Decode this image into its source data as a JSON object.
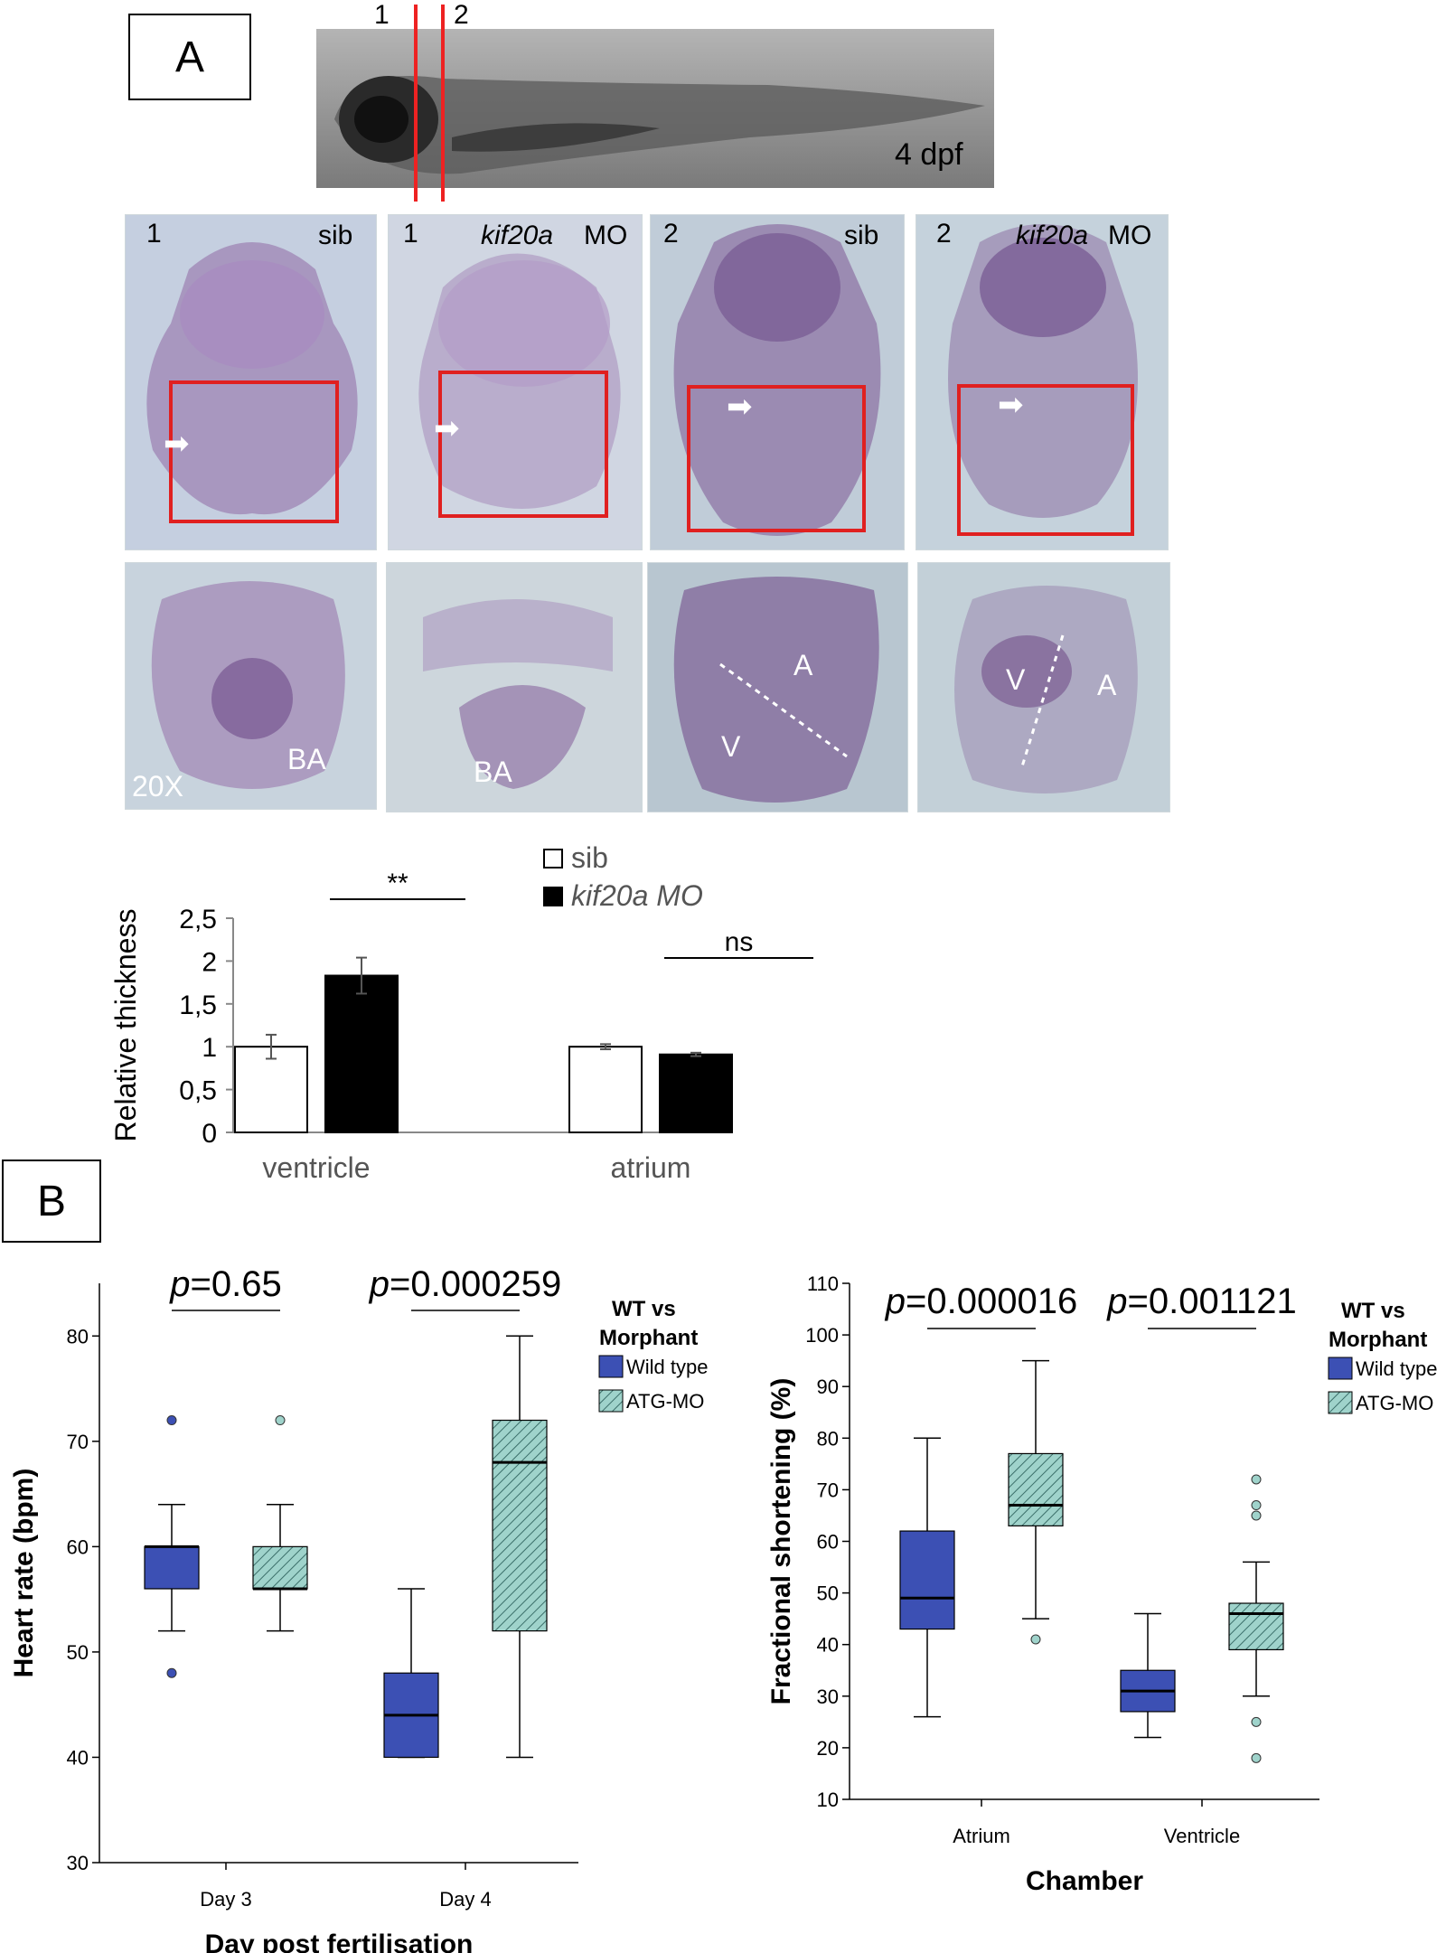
{
  "panel_a": {
    "label": "A",
    "larva": {
      "stage": "4 dpf",
      "section_marks": [
        "1",
        "2"
      ]
    },
    "sections": [
      {
        "num": "1",
        "condition": "sib"
      },
      {
        "num": "1",
        "gene": "kif20a",
        "suffix": "MO"
      },
      {
        "num": "2",
        "condition": "sib"
      },
      {
        "num": "2",
        "gene": "kif20a",
        "suffix": "MO"
      }
    ],
    "zoom": {
      "magnification": "20X",
      "labels": [
        "BA",
        "BA",
        "A",
        "V",
        "V",
        "A"
      ]
    }
  },
  "panel_b": {
    "label": "B"
  },
  "chart_data": [
    {
      "type": "bar",
      "categories": [
        "ventricle",
        "atrium"
      ],
      "series": [
        {
          "name": "sib",
          "color": "#ffffff",
          "values": [
            1.0,
            1.0
          ],
          "errors": [
            0.14,
            0.03
          ]
        },
        {
          "name": "kif20a MO",
          "color": "#000000",
          "values": [
            1.83,
            0.91
          ],
          "errors": [
            0.21,
            0.02
          ]
        }
      ],
      "xlabel": "",
      "ylabel": "Relative thickness",
      "ylim": [
        0,
        2.5
      ],
      "yticks": [
        "0",
        "0,5",
        "1",
        "1,5",
        "2",
        "2,5"
      ],
      "significance": [
        "**",
        "ns"
      ],
      "legend": "top-right"
    },
    {
      "type": "box",
      "categories": [
        "Day 3",
        "Day 4"
      ],
      "xlabel": "Day post fertilisation",
      "ylabel": "Heart rate (bpm)",
      "ylim": [
        30,
        85
      ],
      "yticks": [
        30,
        40,
        50,
        60,
        70,
        80
      ],
      "pvalues": [
        "0.65",
        "0.000259"
      ],
      "legend_title": "WT vs Morphant",
      "series": [
        {
          "name": "Wild type",
          "color": "#3c50b4",
          "boxes": [
            {
              "min": 52,
              "q1": 56,
              "median": 60,
              "q3": 60,
              "max": 64,
              "outliers": [
                72,
                48
              ]
            },
            {
              "min": 40,
              "q1": 40,
              "median": 44,
              "q3": 48,
              "max": 56,
              "outliers": []
            }
          ]
        },
        {
          "name": "ATG-MO",
          "color": "#9fd3cb",
          "boxes": [
            {
              "min": 52,
              "q1": 56,
              "median": 56,
              "q3": 60,
              "max": 64,
              "outliers": [
                72
              ]
            },
            {
              "min": 40,
              "q1": 52,
              "median": 68,
              "q3": 72,
              "max": 80,
              "outliers": []
            }
          ]
        }
      ]
    },
    {
      "type": "box",
      "categories": [
        "Atrium",
        "Ventricle"
      ],
      "xlabel": "Chamber",
      "ylabel": "Fractional shortening (%)",
      "ylim": [
        10,
        110
      ],
      "yticks": [
        10,
        20,
        30,
        40,
        50,
        60,
        70,
        80,
        90,
        100,
        110
      ],
      "pvalues": [
        "0.000016",
        "0.001121"
      ],
      "legend_title": "WT vs Morphant",
      "series": [
        {
          "name": "Wild type",
          "color": "#3c50b4",
          "boxes": [
            {
              "min": 26,
              "q1": 43,
              "median": 49,
              "q3": 62,
              "max": 80,
              "outliers": []
            },
            {
              "min": 22,
              "q1": 27,
              "median": 31,
              "q3": 35,
              "max": 46,
              "outliers": []
            }
          ]
        },
        {
          "name": "ATG-MO",
          "color": "#9fd3cb",
          "boxes": [
            {
              "min": 45,
              "q1": 63,
              "median": 67,
              "q3": 77,
              "max": 95,
              "outliers": [
                41
              ]
            },
            {
              "min": 30,
              "q1": 39,
              "median": 46,
              "q3": 48,
              "max": 56,
              "outliers": [
                72,
                67,
                65,
                25,
                18
              ]
            }
          ]
        }
      ]
    }
  ]
}
